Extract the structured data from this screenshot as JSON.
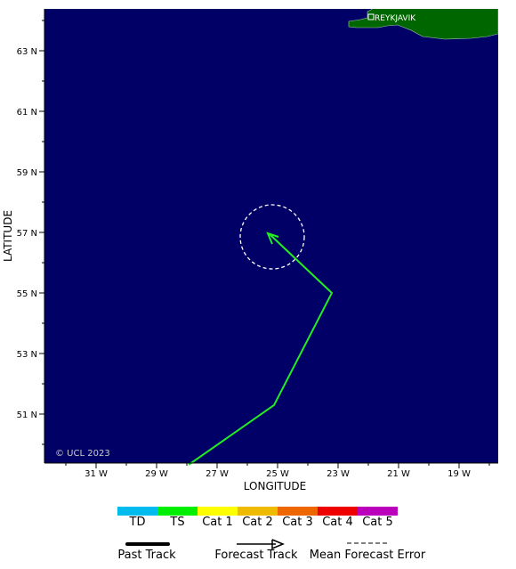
{
  "map": {
    "x_axis_label": "LONGITUDE",
    "y_axis_label": "LATITUDE",
    "lon_ticks": [
      "31 W",
      "29 W",
      "27 W",
      "25 W",
      "23 W",
      "21 W",
      "19 W"
    ],
    "lat_ticks": [
      "63 N",
      "61 N",
      "59 N",
      "57 N",
      "55 N",
      "53 N",
      "51 N"
    ],
    "city_label": "REYKJAVIK",
    "copyright": "© UCL 2023",
    "colors": {
      "ocean": "#000066",
      "land": "#006600",
      "track": "#22ee22",
      "error_circle": "#ffffff"
    },
    "track_points": [
      {
        "lon": -28.0,
        "lat": 49.6
      },
      {
        "lon": -24.9,
        "lat": 51.3
      },
      {
        "lon": -23.0,
        "lat": 55.0
      },
      {
        "lon": -25.2,
        "lat": 57.0
      }
    ],
    "error_circle_center": {
      "lon": -24.9,
      "lat": 56.9
    }
  },
  "legend": {
    "categories": [
      {
        "label": "TD",
        "color": "#00bbee"
      },
      {
        "label": "TS",
        "color": "#00ee00"
      },
      {
        "label": "Cat 1",
        "color": "#ffff00"
      },
      {
        "label": "Cat 2",
        "color": "#eebb00"
      },
      {
        "label": "Cat 3",
        "color": "#ee6600"
      },
      {
        "label": "Cat 4",
        "color": "#ee0000"
      },
      {
        "label": "Cat 5",
        "color": "#bb00bb"
      }
    ],
    "past_track": "Past Track",
    "forecast_track": "Forecast Track",
    "mean_error": "Mean Forecast Error"
  }
}
